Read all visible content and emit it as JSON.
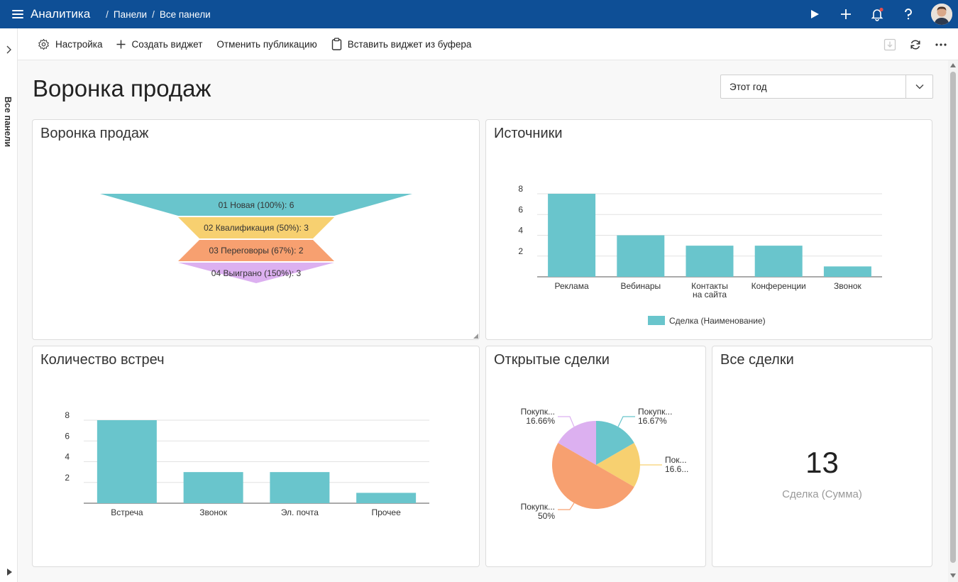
{
  "app": {
    "title": "Аналитика"
  },
  "breadcrumb": {
    "items": [
      "Панели",
      "Все панели"
    ]
  },
  "rail": {
    "label": "Все панели"
  },
  "commands": {
    "settings": "Настройка",
    "create_widget": "Создать виджет",
    "unpublish": "Отменить публикацию",
    "paste_widget": "Вставить виджет из буфера"
  },
  "page": {
    "title": "Воронка продаж"
  },
  "period_filter": {
    "value": "Этот год"
  },
  "icons": {
    "menu": "hamburger-icon",
    "play": "play-icon",
    "add": "plus-icon",
    "notifications": "bell-icon",
    "help": "question-icon",
    "settings": "gear-icon",
    "create": "plus-icon",
    "paste": "clipboard-icon",
    "save": "download-icon",
    "refresh": "refresh-icon",
    "more": "more-icon",
    "dropdown": "chevron-down-icon"
  },
  "colors": {
    "header": "#0e4f96",
    "teal": "#69c5cc",
    "yellow": "#f7d070",
    "orange": "#f7a070",
    "violet": "#dcb0f0",
    "badge": "#e24d4d"
  },
  "widgets": {
    "funnel": {
      "title": "Воронка продаж"
    },
    "sources": {
      "title": "Источники",
      "legend": "Сделка (Наименование)"
    },
    "meetings": {
      "title": "Количество встреч"
    },
    "open_deals": {
      "title": "Открытые сделки"
    },
    "all_deals": {
      "title": "Все сделки",
      "value": "13",
      "label": "Сделка (Сумма)"
    }
  },
  "chart_data": [
    {
      "type": "funnel",
      "categories": [
        "01 Новая (100%): 6",
        "02 Квалификация (50%): 3",
        "03 Переговоры (67%): 2",
        "04 Выиграно (150%): 3"
      ],
      "values": [
        6,
        3,
        2,
        3
      ],
      "colors": [
        "#69c5cc",
        "#f7d070",
        "#f7a070",
        "#dcb0f0"
      ]
    },
    {
      "type": "bar",
      "categories": [
        "Реклама",
        "Вебинары",
        "Контакты на сайта",
        "Конференции",
        "Звонок"
      ],
      "category_lines": [
        [
          "Реклама"
        ],
        [
          "Вебинары"
        ],
        [
          "Контакты",
          "на сайта"
        ],
        [
          "Конференции"
        ],
        [
          "Звонок"
        ]
      ],
      "series": [
        {
          "name": "Сделка (Наименование)",
          "values": [
            8,
            4,
            3,
            3,
            1
          ]
        }
      ],
      "yticks": [
        2,
        4,
        6,
        8
      ],
      "ylim": [
        0,
        8
      ],
      "grid": true,
      "legend": "bottom"
    },
    {
      "type": "bar",
      "categories": [
        "Встреча",
        "Звонок",
        "Эл. почта",
        "Прочее"
      ],
      "values": [
        8,
        3,
        3,
        1
      ],
      "yticks": [
        2,
        4,
        6,
        8
      ],
      "ylim": [
        0,
        8
      ],
      "grid": true
    },
    {
      "type": "pie",
      "slices": [
        {
          "label": "Покупк...",
          "percent_label": "16.67%",
          "value": 16.67,
          "color": "#69c5cc"
        },
        {
          "label": "Пок...",
          "percent_label": "16.6...",
          "value": 16.67,
          "color": "#f7d070"
        },
        {
          "label": "Покупк...",
          "percent_label": "50%",
          "value": 50,
          "color": "#f7a070"
        },
        {
          "label": "Покупк...",
          "percent_label": "16.66%",
          "value": 16.66,
          "color": "#dcb0f0"
        }
      ]
    }
  ]
}
